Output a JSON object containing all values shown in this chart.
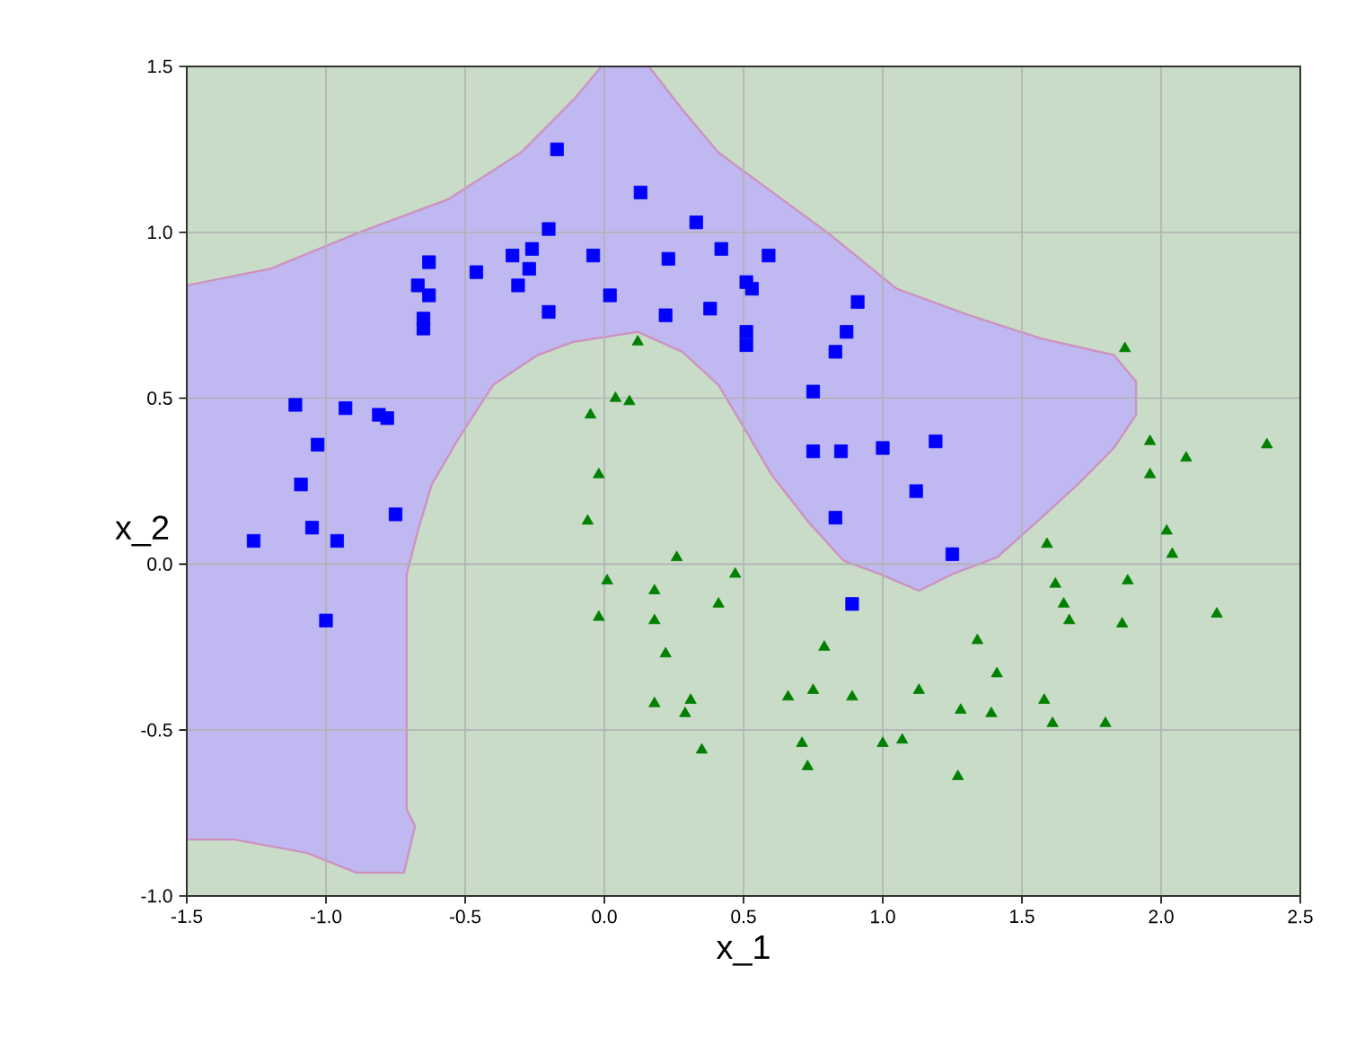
{
  "chart_data": {
    "type": "scatter",
    "xlabel": "x_1",
    "ylabel": "x_2",
    "xlim": [
      -1.5,
      2.5
    ],
    "ylim": [
      -1.0,
      1.5
    ],
    "xticks": [
      -1.5,
      {
        "value": -1.0,
        "label": "-1.0"
      },
      -0.5,
      {
        "value": 0.0,
        "label": "0.0"
      },
      0.5,
      {
        "value": 1.0,
        "label": "1.0"
      },
      1.5,
      {
        "value": 2.0,
        "label": "2.0"
      },
      2.5
    ],
    "yticks": [
      {
        "value": -1.0,
        "label": "-1.0"
      },
      -0.5,
      {
        "value": 0.0,
        "label": "0.0"
      },
      0.5,
      {
        "value": 1.0,
        "label": "1.0"
      },
      1.5
    ],
    "bands": [
      {
        "axis": "y",
        "from": -1.0,
        "to": 1.5,
        "color": "#c8dcc8"
      }
    ],
    "grid": true,
    "series": [
      {
        "type": "area",
        "color": "#c0b8f0",
        "x": [
          -1.5,
          -1.2,
          -0.88,
          -0.56,
          -0.3,
          -0.11,
          -0.01,
          0.16,
          0.28,
          0.41,
          0.54,
          0.8,
          1.05,
          1.31,
          1.57,
          1.83,
          1.91,
          1.91,
          1.83,
          1.7,
          1.57,
          1.41,
          1.25,
          1.13,
          0.99,
          0.86,
          0.73,
          0.6,
          0.51,
          0.41,
          0.28,
          0.12,
          -0.11,
          -0.24,
          -0.4,
          -0.53,
          -0.62,
          -0.67,
          -0.71,
          -0.71,
          -0.68,
          -0.72,
          -0.89,
          -1.07,
          -1.33,
          -1.5
        ],
        "values": [
          0.84,
          0.89,
          1.0,
          1.1,
          1.24,
          1.4,
          1.5,
          1.5,
          1.37,
          1.24,
          1.16,
          1.0,
          0.83,
          0.75,
          0.68,
          0.63,
          0.55,
          0.45,
          0.35,
          0.24,
          0.14,
          0.02,
          -0.03,
          -0.08,
          -0.03,
          0.01,
          0.13,
          0.27,
          0.4,
          0.54,
          0.64,
          0.7,
          0.67,
          0.63,
          0.54,
          0.37,
          0.24,
          0.1,
          -0.03,
          -0.74,
          -0.79,
          -0.93,
          -0.93,
          -0.87,
          -0.83,
          -0.83
        ]
      },
      {
        "color": "#0000ff",
        "marker": "square",
        "x": [
          -0.17,
          0.13,
          0.33,
          -0.2,
          -0.63,
          -0.46,
          -0.33,
          -0.26,
          -0.27,
          -0.31,
          -0.67,
          -0.63,
          -0.65,
          -0.65,
          -0.2,
          -0.04,
          0.02,
          0.23,
          0.42,
          0.51,
          0.53,
          0.38,
          0.22,
          0.51,
          0.51,
          -1.11,
          -0.93,
          -0.81,
          -0.78,
          -1.03,
          -1.09,
          -1.26,
          -1.05,
          -0.96,
          -1.0,
          -0.75,
          0.59,
          0.91,
          0.87,
          0.83,
          0.75,
          0.75,
          0.85,
          1.0,
          1.19,
          1.12,
          0.83,
          1.25,
          0.89
        ],
        "values": [
          1.25,
          1.12,
          1.03,
          1.01,
          0.91,
          0.88,
          0.93,
          0.95,
          0.89,
          0.84,
          0.84,
          0.81,
          0.74,
          0.71,
          0.76,
          0.93,
          0.81,
          0.92,
          0.95,
          0.85,
          0.83,
          0.77,
          0.75,
          0.7,
          0.66,
          0.48,
          0.47,
          0.45,
          0.44,
          0.36,
          0.24,
          0.07,
          0.11,
          0.07,
          -0.17,
          0.15,
          0.93,
          0.79,
          0.7,
          0.64,
          0.52,
          0.34,
          0.34,
          0.35,
          0.37,
          0.22,
          0.14,
          0.03,
          -0.12
        ]
      },
      {
        "color": "#008000",
        "marker": "triangle",
        "x": [
          0.12,
          0.04,
          0.09,
          -0.05,
          -0.02,
          -0.06,
          0.26,
          0.01,
          0.47,
          0.18,
          0.41,
          -0.02,
          0.18,
          0.22,
          0.18,
          0.31,
          0.29,
          0.35,
          1.87,
          1.96,
          2.09,
          2.38,
          1.96,
          2.02,
          2.04,
          1.59,
          1.62,
          1.65,
          1.88,
          1.67,
          1.86,
          2.2,
          1.34,
          0.79,
          1.41,
          0.66,
          0.75,
          0.89,
          1.13,
          1.28,
          1.39,
          1.58,
          1.61,
          1.8,
          0.71,
          0.73,
          1.0,
          1.07,
          1.27
        ],
        "values": [
          0.67,
          0.5,
          0.49,
          0.45,
          0.27,
          0.13,
          0.02,
          -0.05,
          -0.03,
          -0.08,
          -0.12,
          -0.16,
          -0.17,
          -0.27,
          -0.42,
          -0.41,
          -0.45,
          -0.56,
          0.65,
          0.37,
          0.32,
          0.36,
          0.27,
          0.1,
          0.03,
          0.06,
          -0.06,
          -0.12,
          -0.05,
          -0.17,
          -0.18,
          -0.15,
          -0.23,
          -0.25,
          -0.33,
          -0.4,
          -0.38,
          -0.4,
          -0.38,
          -0.44,
          -0.45,
          -0.41,
          -0.48,
          -0.48,
          -0.54,
          -0.61,
          -0.54,
          -0.53,
          -0.64
        ]
      }
    ]
  }
}
